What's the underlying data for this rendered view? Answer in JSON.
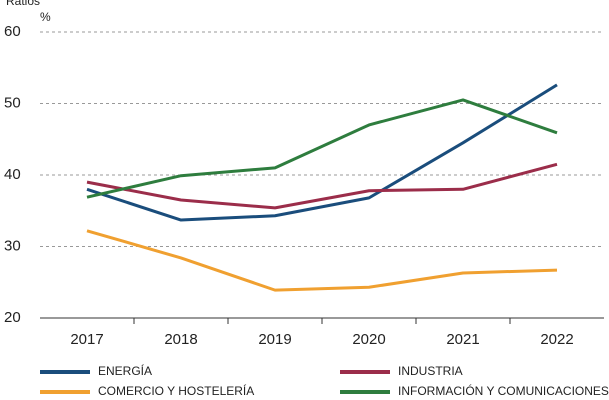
{
  "chart_data": {
    "type": "line",
    "title": "Ratios",
    "ylabel": "%",
    "categories": [
      "2017",
      "2018",
      "2019",
      "2020",
      "2021",
      "2022"
    ],
    "series": [
      {
        "name": "ENERGÍA",
        "color": "#1a4d7c",
        "values": [
          38.0,
          33.7,
          34.3,
          36.8,
          44.5,
          52.6
        ]
      },
      {
        "name": "INDUSTRIA",
        "color": "#9b2d4a",
        "values": [
          39.0,
          36.5,
          35.4,
          37.8,
          38.0,
          41.5
        ]
      },
      {
        "name": "COMERCIO Y HOSTELERÍA",
        "color": "#f0a030",
        "values": [
          32.2,
          28.4,
          23.9,
          24.3,
          26.3,
          26.7
        ]
      },
      {
        "name": "INFORMACIÓN Y COMUNICACIONES",
        "color": "#2e7d3e",
        "values": [
          36.9,
          39.9,
          41.0,
          47.0,
          50.5,
          45.9
        ]
      }
    ],
    "ylim": [
      20,
      60
    ],
    "yticks": [
      20,
      30,
      40,
      50,
      60
    ],
    "grid": true
  }
}
